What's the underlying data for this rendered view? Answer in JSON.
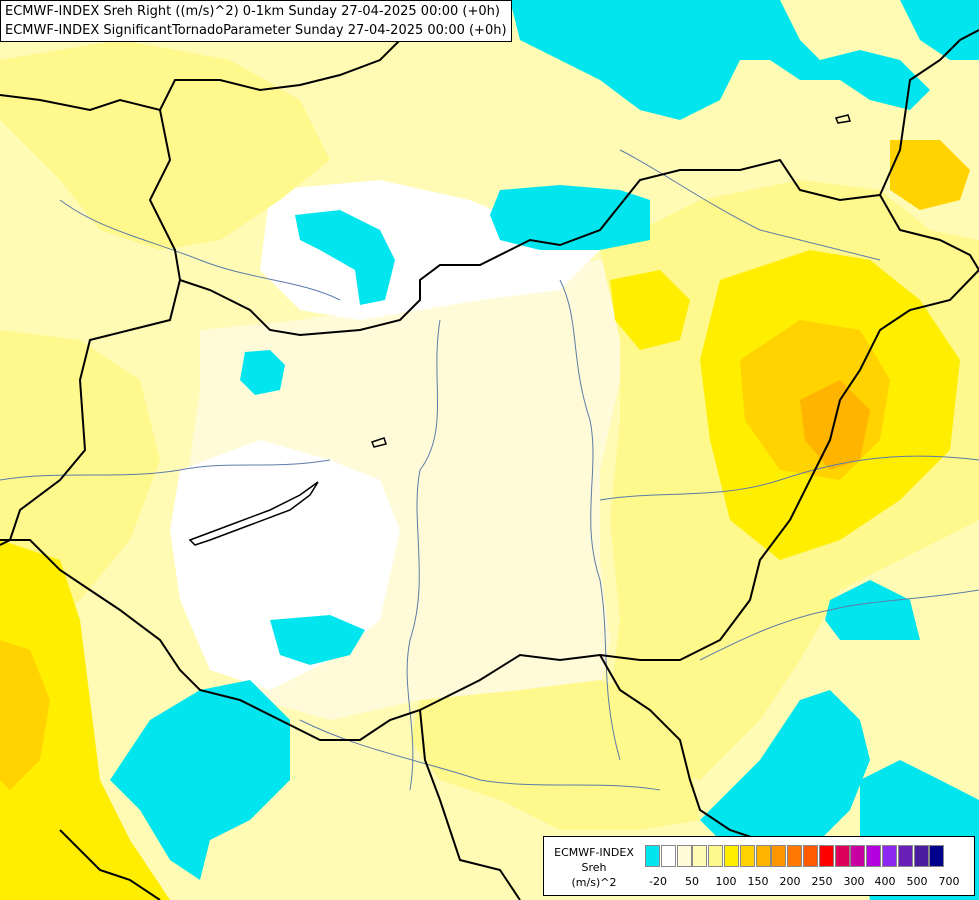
{
  "header": {
    "line1": "ECMWF-INDEX Sreh Right ((m/s)^2) 0-1km Sunday 27-04-2025 00:00 (+0h)",
    "line2": "ECMWF-INDEX SignificantTornadoParameter Sunday 27-04-2025 00:00 (+0h)"
  },
  "legend": {
    "line1": "ECMWF-INDEX",
    "line2": "Sreh",
    "line3": "(m/s)^2",
    "swatch_colors": [
      "#00e5ee",
      "#ffffff",
      "#fffbd8",
      "#fffab4",
      "#fff88c",
      "#ffee00",
      "#ffd200",
      "#ffb400",
      "#ff9600",
      "#ff7800",
      "#ff5a00",
      "#ff0000",
      "#dc005a",
      "#c800a0",
      "#b400dc",
      "#8c28f0",
      "#6a1fb8",
      "#4b1ca0",
      "#00008c"
    ],
    "ticks": [
      "-20",
      "50",
      "100",
      "150",
      "200",
      "250",
      "300",
      "400",
      "500",
      "700"
    ]
  },
  "colors": {
    "cyan": "#00e5ee",
    "white": "#ffffff",
    "pale_yellow": "#fffbd8",
    "light_yellow": "#fffab4",
    "yellow": "#fff88c",
    "bright_yellow": "#ffee00",
    "gold": "#ffd200",
    "orange": "#ffb400",
    "border": "#000000",
    "river": "#5c7ca8"
  }
}
